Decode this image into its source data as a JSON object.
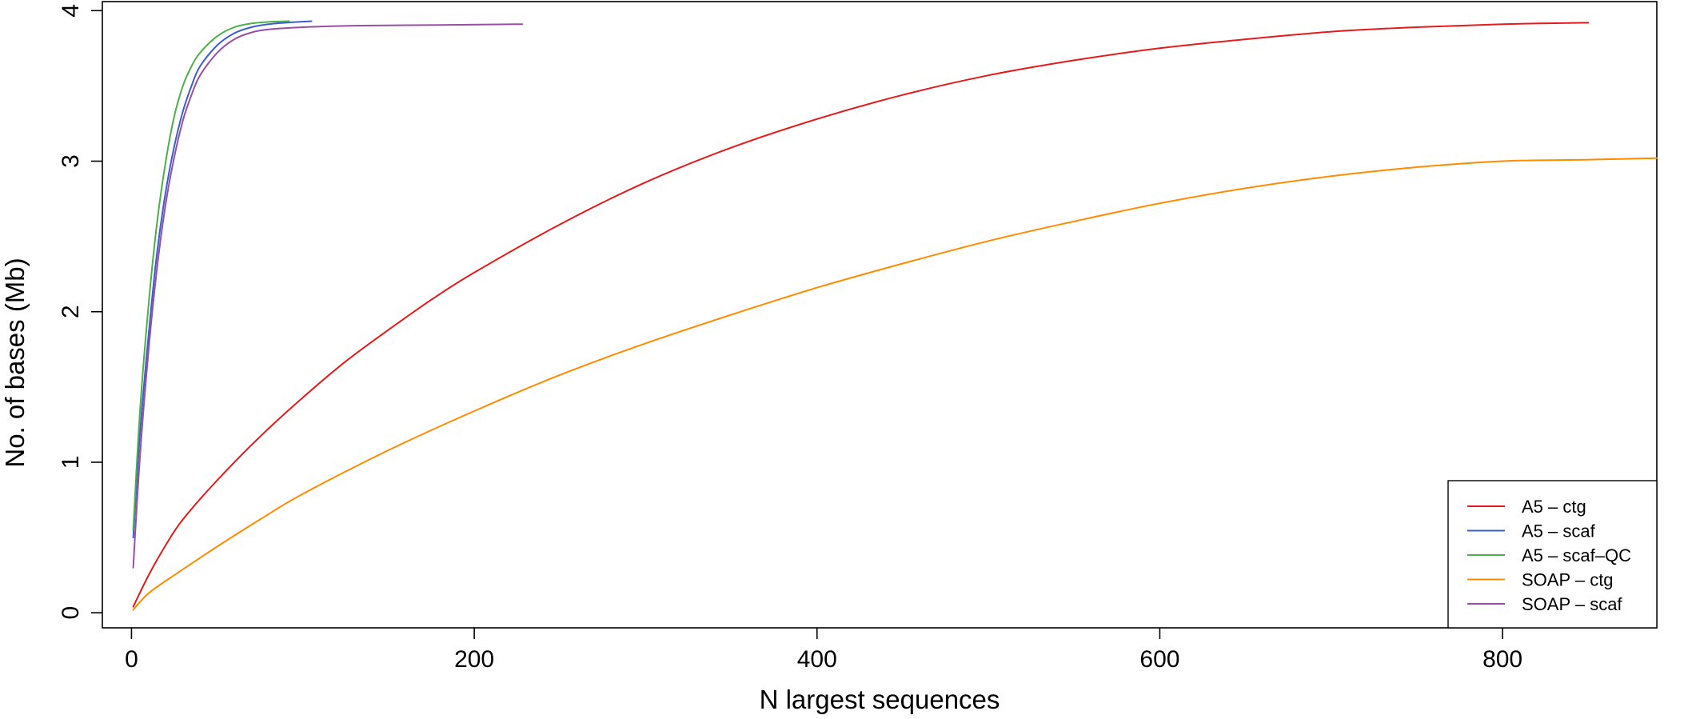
{
  "chart_data": {
    "type": "line",
    "title": "",
    "xlabel": "N largest sequences",
    "ylabel": "No. of bases (Mb)",
    "xlim": [
      -17,
      890
    ],
    "ylim": [
      -0.1,
      4.06
    ],
    "x_ticks": [
      0,
      200,
      400,
      600,
      800
    ],
    "y_ticks": [
      0,
      1,
      2,
      3,
      4
    ],
    "x_tick_labels": [
      "0",
      "200",
      "400",
      "600",
      "800"
    ],
    "y_tick_labels": [
      "0",
      "1",
      "2",
      "3",
      "4"
    ],
    "grid": false,
    "legend_position": "bottom-right",
    "series": [
      {
        "name": "A5 – ctg",
        "color": "#e41a1c",
        "points": [
          [
            1,
            0.04
          ],
          [
            10,
            0.25
          ],
          [
            20,
            0.45
          ],
          [
            30,
            0.62
          ],
          [
            50,
            0.88
          ],
          [
            75,
            1.17
          ],
          [
            100,
            1.43
          ],
          [
            125,
            1.67
          ],
          [
            150,
            1.88
          ],
          [
            175,
            2.08
          ],
          [
            200,
            2.26
          ],
          [
            250,
            2.58
          ],
          [
            300,
            2.86
          ],
          [
            350,
            3.09
          ],
          [
            400,
            3.28
          ],
          [
            450,
            3.44
          ],
          [
            500,
            3.57
          ],
          [
            550,
            3.67
          ],
          [
            600,
            3.75
          ],
          [
            650,
            3.81
          ],
          [
            700,
            3.86
          ],
          [
            750,
            3.89
          ],
          [
            800,
            3.91
          ],
          [
            850,
            3.92
          ]
        ]
      },
      {
        "name": "A5 – scaf",
        "color": "#3a5fcd",
        "points": [
          [
            1,
            0.5
          ],
          [
            5,
            1.2
          ],
          [
            10,
            1.85
          ],
          [
            15,
            2.4
          ],
          [
            20,
            2.8
          ],
          [
            25,
            3.1
          ],
          [
            30,
            3.33
          ],
          [
            35,
            3.5
          ],
          [
            40,
            3.63
          ],
          [
            50,
            3.77
          ],
          [
            60,
            3.85
          ],
          [
            70,
            3.89
          ],
          [
            80,
            3.91
          ],
          [
            90,
            3.92
          ],
          [
            105,
            3.93
          ]
        ]
      },
      {
        "name": "A5 – scaf–QC",
        "color": "#4daf4a",
        "points": [
          [
            1,
            0.55
          ],
          [
            5,
            1.35
          ],
          [
            10,
            2.05
          ],
          [
            15,
            2.6
          ],
          [
            20,
            3.0
          ],
          [
            25,
            3.3
          ],
          [
            30,
            3.5
          ],
          [
            35,
            3.63
          ],
          [
            40,
            3.72
          ],
          [
            50,
            3.83
          ],
          [
            60,
            3.89
          ],
          [
            70,
            3.915
          ],
          [
            80,
            3.925
          ],
          [
            92,
            3.93
          ]
        ]
      },
      {
        "name": "SOAP – ctg",
        "color": "#ff8c00",
        "points": [
          [
            1,
            0.02
          ],
          [
            10,
            0.13
          ],
          [
            25,
            0.25
          ],
          [
            50,
            0.44
          ],
          [
            75,
            0.62
          ],
          [
            100,
            0.79
          ],
          [
            150,
            1.08
          ],
          [
            200,
            1.34
          ],
          [
            250,
            1.58
          ],
          [
            300,
            1.79
          ],
          [
            350,
            1.98
          ],
          [
            400,
            2.16
          ],
          [
            450,
            2.32
          ],
          [
            500,
            2.47
          ],
          [
            550,
            2.6
          ],
          [
            600,
            2.72
          ],
          [
            650,
            2.82
          ],
          [
            700,
            2.9
          ],
          [
            750,
            2.96
          ],
          [
            800,
            3.0
          ],
          [
            850,
            3.01
          ],
          [
            890,
            3.02
          ]
        ]
      },
      {
        "name": "SOAP – scaf",
        "color": "#984ea3",
        "points": [
          [
            1,
            0.3
          ],
          [
            5,
            1.05
          ],
          [
            10,
            1.75
          ],
          [
            15,
            2.3
          ],
          [
            20,
            2.72
          ],
          [
            25,
            3.03
          ],
          [
            30,
            3.27
          ],
          [
            35,
            3.44
          ],
          [
            40,
            3.57
          ],
          [
            50,
            3.72
          ],
          [
            60,
            3.81
          ],
          [
            70,
            3.855
          ],
          [
            80,
            3.875
          ],
          [
            100,
            3.89
          ],
          [
            130,
            3.9
          ],
          [
            180,
            3.905
          ],
          [
            228,
            3.91
          ]
        ]
      }
    ]
  }
}
